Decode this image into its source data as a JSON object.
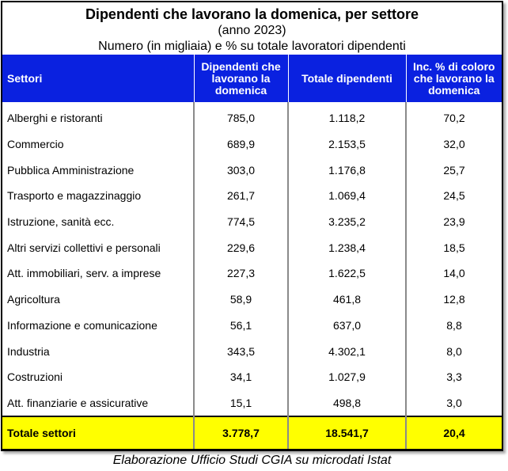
{
  "header": {
    "title": "Dipendenti che lavorano la domenica, per settore",
    "subtitle": "(anno 2023)",
    "subtitle2": "Numero (in migliaia) e % su totale lavoratori dipendenti"
  },
  "columns": {
    "sector": "Settori",
    "sunday": "Dipendenti che lavorano la domenica",
    "total": "Totale dipendenti",
    "pct": "Inc. % di coloro che lavorano la domenica"
  },
  "rows": [
    {
      "sector": "Alberghi e ristoranti",
      "sunday": "785,0",
      "total": "1.118,2",
      "pct": "70,2"
    },
    {
      "sector": "Commercio",
      "sunday": "689,9",
      "total": "2.153,5",
      "pct": "32,0"
    },
    {
      "sector": "Pubblica Amministrazione",
      "sunday": "303,0",
      "total": "1.176,8",
      "pct": "25,7"
    },
    {
      "sector": "Trasporto e magazzinaggio",
      "sunday": "261,7",
      "total": "1.069,4",
      "pct": "24,5"
    },
    {
      "sector": "Istruzione, sanità ecc.",
      "sunday": "774,5",
      "total": "3.235,2",
      "pct": "23,9"
    },
    {
      "sector": "Altri servizi collettivi e personali",
      "sunday": "229,6",
      "total": "1.238,4",
      "pct": "18,5"
    },
    {
      "sector": "Att. immobiliari, serv. a imprese",
      "sunday": "227,3",
      "total": "1.622,5",
      "pct": "14,0"
    },
    {
      "sector": "Agricoltura",
      "sunday": "58,9",
      "total": "461,8",
      "pct": "12,8"
    },
    {
      "sector": "Informazione e comunicazione",
      "sunday": "56,1",
      "total": "637,0",
      "pct": "8,8"
    },
    {
      "sector": "Industria",
      "sunday": "343,5",
      "total": "4.302,1",
      "pct": "8,0"
    },
    {
      "sector": "Costruzioni",
      "sunday": "34,1",
      "total": "1.027,9",
      "pct": "3,3"
    },
    {
      "sector": "Att. finanziarie e assicurative",
      "sunday": "15,1",
      "total": "498,8",
      "pct": "3,0"
    }
  ],
  "total_row": {
    "sector": "Totale settori",
    "sunday": "3.778,7",
    "total": "18.541,7",
    "pct": "20,4"
  },
  "source": "Elaborazione Ufficio Studi CGIA su microdati Istat",
  "colors": {
    "header_bg": "#0a21e0",
    "total_bg": "#ffff00"
  }
}
